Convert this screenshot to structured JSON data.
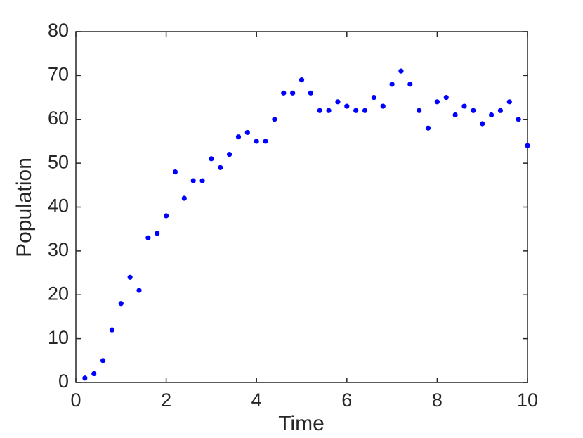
{
  "chart_data": {
    "type": "scatter",
    "x_label": "Time",
    "y_label": "Population",
    "x": [
      0.2,
      0.4,
      0.6,
      0.8,
      1.0,
      1.2,
      1.4,
      1.6,
      1.8,
      2.0,
      2.2,
      2.4,
      2.6,
      2.8,
      3.0,
      3.2,
      3.4,
      3.6,
      3.8,
      4.0,
      4.2,
      4.4,
      4.6,
      4.8,
      5.0,
      5.2,
      5.4,
      5.6,
      5.8,
      6.0,
      6.2,
      6.4,
      6.6,
      6.8,
      7.0,
      7.2,
      7.4,
      7.6,
      7.8,
      8.0,
      8.2,
      8.4,
      8.6,
      8.8,
      9.0,
      9.2,
      9.4,
      9.6,
      9.8,
      10
    ],
    "values": [
      1,
      2,
      5,
      12,
      18,
      24,
      21,
      33,
      34,
      38,
      48,
      42,
      46,
      46,
      51,
      49,
      52,
      56,
      57,
      55,
      55,
      60,
      66,
      66,
      69,
      66,
      62,
      62,
      64,
      63,
      62,
      62,
      65,
      63,
      68,
      71,
      68,
      62,
      58,
      64,
      65,
      61,
      63,
      62,
      59,
      61,
      62,
      64,
      60,
      54
    ],
    "color": "#0000ff",
    "xlim": [
      0,
      10
    ],
    "xticks": [
      0,
      2,
      4,
      6,
      8,
      10
    ],
    "ylim": [
      0,
      80
    ],
    "yticks": [
      0,
      10,
      20,
      30,
      40,
      50,
      60,
      70,
      80
    ],
    "grid": false
  }
}
